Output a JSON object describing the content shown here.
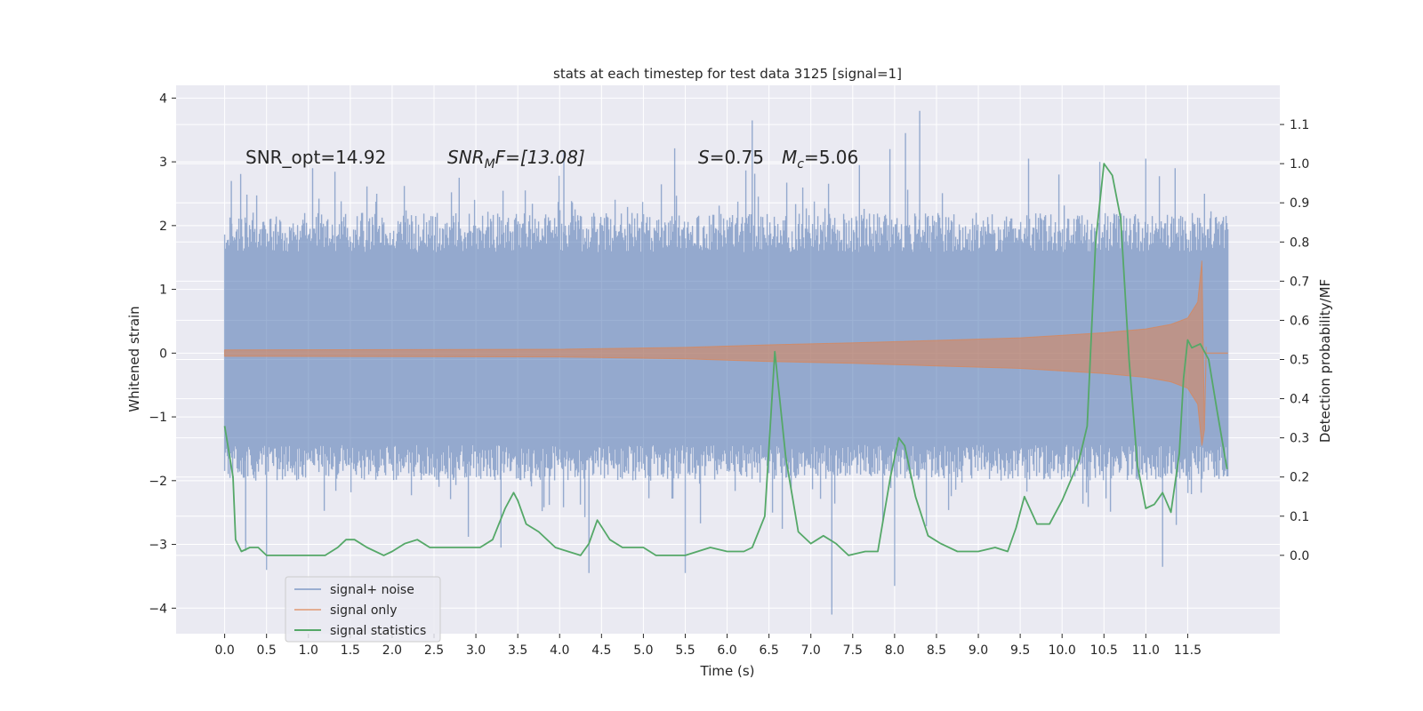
{
  "chart_data": {
    "type": "line",
    "title": "stats at each timestep for test data 3125 [signal=1]",
    "xlabel": "Time (s)",
    "ylabel": "Whitened strain",
    "ylabel_right": "Detection probability/MF",
    "xlim": [
      -0.58,
      12.6
    ],
    "ylim": [
      -4.4,
      4.2
    ],
    "ylim_right": [
      -0.2,
      1.2
    ],
    "grid": true,
    "legend_position": "lower-left",
    "x_ticks": [
      "0.0",
      "0.5",
      "1.0",
      "1.5",
      "2.0",
      "2.5",
      "3.0",
      "3.5",
      "4.0",
      "4.5",
      "5.0",
      "5.5",
      "6.0",
      "6.5",
      "7.0",
      "7.5",
      "8.0",
      "8.5",
      "9.0",
      "9.5",
      "10.0",
      "10.5",
      "11.0",
      "11.5"
    ],
    "y_ticks": [
      "4",
      "3",
      "2",
      "1",
      "0",
      "−1",
      "−2",
      "−3",
      "−4"
    ],
    "y_right_ticks": [
      "1.1",
      "1.0",
      "0.9",
      "0.8",
      "0.7",
      "0.6",
      "0.5",
      "0.4",
      "0.3",
      "0.2",
      "0.1",
      "0.0"
    ],
    "annotations": {
      "snr_opt": "SNR_opt=14.92",
      "snr_mf_base": "SNR",
      "snr_mf_sub": "M",
      "snr_mf_rest": "F=[13.08]",
      "s_var": "S",
      "s_rest": "=0.75",
      "mc_var": "M",
      "mc_sub": "c",
      "mc_rest": "=5.06"
    },
    "series": [
      {
        "name": "signal+ noise",
        "axis": "left",
        "color": "#4c72b0",
        "alpha": 0.5,
        "style": "dense noise trace",
        "x_range": [
          0.0,
          11.98
        ],
        "typical_envelope": [
          -2.0,
          2.2
        ],
        "peaks": [
          [
            0.08,
            2.7
          ],
          [
            0.25,
            -3.1
          ],
          [
            0.5,
            -3.4
          ],
          [
            1.05,
            2.9
          ],
          [
            2.8,
            2.75
          ],
          [
            3.3,
            -3.05
          ],
          [
            4.05,
            3.15
          ],
          [
            4.35,
            -3.45
          ],
          [
            5.5,
            -3.45
          ],
          [
            6.3,
            3.65
          ],
          [
            7.25,
            -4.1
          ],
          [
            7.58,
            2.95
          ],
          [
            8.0,
            -3.65
          ],
          [
            8.13,
            3.45
          ],
          [
            8.3,
            3.8
          ],
          [
            9.6,
            3.05
          ],
          [
            10.45,
            3.0
          ],
          [
            11.0,
            3.05
          ],
          [
            11.2,
            -3.35
          ],
          [
            11.35,
            2.9
          ],
          [
            11.7,
            2.5
          ]
        ]
      },
      {
        "name": "signal only",
        "axis": "left",
        "color": "#dd8452",
        "alpha": 0.6,
        "style": "chirp",
        "envelope": [
          [
            0.0,
            0.05
          ],
          [
            4.0,
            0.06
          ],
          [
            5.5,
            0.09
          ],
          [
            6.5,
            0.13
          ],
          [
            7.5,
            0.16
          ],
          [
            8.5,
            0.2
          ],
          [
            9.5,
            0.24
          ],
          [
            10.5,
            0.32
          ],
          [
            11.0,
            0.38
          ],
          [
            11.3,
            0.45
          ],
          [
            11.5,
            0.55
          ],
          [
            11.62,
            0.8
          ],
          [
            11.67,
            1.45
          ],
          [
            11.7,
            -1.2
          ],
          [
            11.72,
            0.1
          ]
        ]
      },
      {
        "name": "signal statistics",
        "axis": "right",
        "color": "#55a868",
        "x": [
          0.0,
          0.1,
          0.13,
          0.2,
          0.3,
          0.4,
          0.5,
          0.7,
          1.0,
          1.2,
          1.35,
          1.45,
          1.55,
          1.7,
          1.9,
          2.0,
          2.15,
          2.3,
          2.45,
          2.55,
          2.75,
          2.95,
          3.05,
          3.2,
          3.35,
          3.45,
          3.5,
          3.6,
          3.75,
          3.95,
          4.1,
          4.25,
          4.35,
          4.45,
          4.6,
          4.75,
          5.0,
          5.15,
          5.5,
          5.8,
          6.0,
          6.2,
          6.3,
          6.45,
          6.57,
          6.7,
          6.85,
          7.0,
          7.15,
          7.3,
          7.45,
          7.65,
          7.8,
          7.95,
          8.05,
          8.12,
          8.25,
          8.4,
          8.55,
          8.75,
          9.0,
          9.2,
          9.35,
          9.45,
          9.55,
          9.7,
          9.85,
          10.0,
          10.2,
          10.3,
          10.4,
          10.5,
          10.6,
          10.7,
          10.8,
          10.9,
          11.0,
          11.1,
          11.2,
          11.3,
          11.4,
          11.45,
          11.5,
          11.55,
          11.65,
          11.75,
          11.85,
          11.97
        ],
        "values": [
          0.33,
          0.2,
          0.04,
          0.01,
          0.02,
          0.02,
          0.0,
          0.0,
          0.0,
          0.0,
          0.02,
          0.04,
          0.04,
          0.02,
          0.0,
          0.01,
          0.03,
          0.04,
          0.02,
          0.02,
          0.02,
          0.02,
          0.02,
          0.04,
          0.12,
          0.16,
          0.14,
          0.08,
          0.06,
          0.02,
          0.01,
          0.0,
          0.03,
          0.09,
          0.04,
          0.02,
          0.02,
          0.0,
          0.0,
          0.02,
          0.01,
          0.01,
          0.02,
          0.1,
          0.52,
          0.25,
          0.06,
          0.03,
          0.05,
          0.03,
          0.0,
          0.01,
          0.01,
          0.2,
          0.3,
          0.28,
          0.15,
          0.05,
          0.03,
          0.01,
          0.01,
          0.02,
          0.01,
          0.07,
          0.15,
          0.08,
          0.08,
          0.14,
          0.24,
          0.33,
          0.8,
          1.0,
          0.97,
          0.86,
          0.5,
          0.23,
          0.12,
          0.13,
          0.16,
          0.11,
          0.26,
          0.45,
          0.55,
          0.53,
          0.54,
          0.5,
          0.37,
          0.22
        ]
      }
    ]
  }
}
